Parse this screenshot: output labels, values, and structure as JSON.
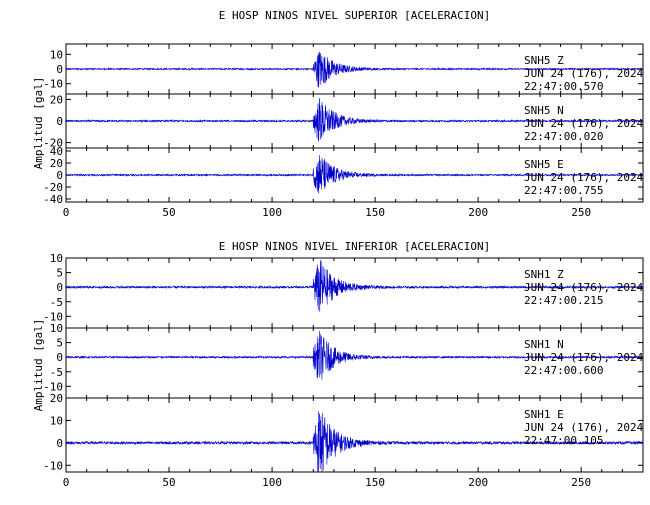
{
  "chart_data": [
    {
      "type": "line",
      "title": "E HOSP NINOS NIVEL SUPERIOR [ACELERACION]",
      "ylabel": "Amplitud [gal]",
      "xlim": [
        0,
        280
      ],
      "x_ticks": [
        "0",
        "50",
        "100",
        "150",
        "200",
        "250"
      ],
      "line_color": "#0000cc",
      "signal_onset": 120,
      "peak_time": 123,
      "traces": [
        {
          "name": "SNH5 Z",
          "station": "SNH5",
          "component": "Z",
          "date": "JUN 24 (176), 2024",
          "time": "22:47:00.570",
          "ylim": [
            -17,
            17
          ],
          "y_ticks": [
            "10",
            "0",
            "-10"
          ],
          "peak": 14
        },
        {
          "name": "SNH5 N",
          "station": "SNH5",
          "component": "N",
          "date": "JUN 24 (176), 2024",
          "time": "22:47:00.020",
          "ylim": [
            -25,
            25
          ],
          "y_ticks": [
            "20",
            "0",
            "-20"
          ],
          "peak": 22
        },
        {
          "name": "SNH5 E",
          "station": "SNH5",
          "component": "E",
          "date": "JUN 24 (176), 2024",
          "time": "22:47:00.755",
          "ylim": [
            -45,
            45
          ],
          "y_ticks": [
            "40",
            "20",
            "0",
            "-20",
            "-40"
          ],
          "peak": 38
        }
      ]
    },
    {
      "type": "line",
      "title": "E HOSP NINOS NIVEL INFERIOR [ACELERACION]",
      "ylabel": "Amplitud [gal]",
      "xlim": [
        0,
        280
      ],
      "x_ticks": [
        "0",
        "50",
        "100",
        "150",
        "200",
        "250"
      ],
      "line_color": "#0000cc",
      "signal_onset": 120,
      "peak_time": 123,
      "traces": [
        {
          "name": "SNH1 Z",
          "station": "SNH1",
          "component": "Z",
          "date": "JUN 24 (176), 2024",
          "time": "22:47:00.215",
          "ylim": [
            -14,
            10
          ],
          "y_ticks": [
            "10",
            "5",
            "0",
            "-5",
            "-10"
          ],
          "peak": 10
        },
        {
          "name": "SNH1 N",
          "station": "SNH1",
          "component": "N",
          "date": "JUN 24 (176), 2024",
          "time": "22:47:00.600",
          "ylim": [
            -14,
            10
          ],
          "y_ticks": [
            "10",
            "5",
            "0",
            "-5",
            "-10"
          ],
          "peak": 9
        },
        {
          "name": "SNH1 E",
          "station": "SNH1",
          "component": "E",
          "date": "JUN 24 (176), 2024",
          "time": "22:47:00.105",
          "ylim": [
            -13,
            20
          ],
          "y_ticks": [
            "20",
            "10",
            "0",
            "-10"
          ],
          "peak": 17
        }
      ]
    }
  ]
}
